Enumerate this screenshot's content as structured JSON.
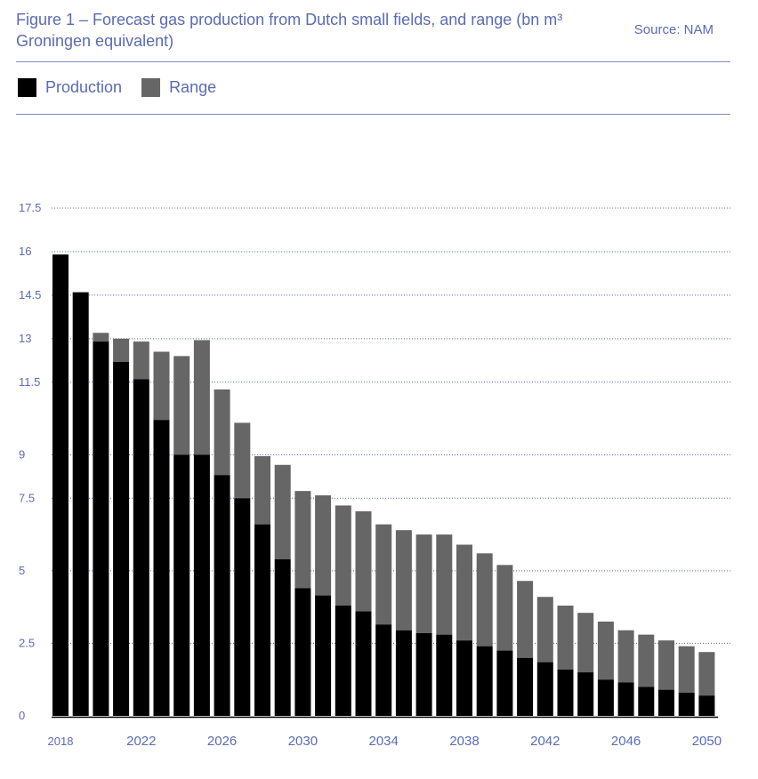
{
  "header": {
    "title": "Figure 1 – Forecast gas production from Dutch small fields, and range (bn m³ Groningen equivalent)",
    "source": "Source: NAM"
  },
  "legend": {
    "items": [
      {
        "label": "Production",
        "color": "#000000"
      },
      {
        "label": "Range",
        "color": "#666666"
      }
    ]
  },
  "chart_data": {
    "type": "bar",
    "stacked": true,
    "title": "Figure 1 – Forecast gas production from Dutch small fields, and range (bn m³ Groningen equivalent)",
    "xlabel": "",
    "ylabel": "",
    "ylim": [
      0,
      17.5
    ],
    "yticks": [
      "0",
      "2.5",
      "5",
      "7.5",
      "9",
      "11.5",
      "13",
      "14.5",
      "16",
      "17.5"
    ],
    "xtick_labels": [
      "2018",
      "2022",
      "2026",
      "2030",
      "2034",
      "2038",
      "2042",
      "2046",
      "2050"
    ],
    "grid": true,
    "legend_position": "top-left",
    "categories": [
      2018,
      2019,
      2020,
      2021,
      2022,
      2023,
      2024,
      2025,
      2026,
      2027,
      2028,
      2029,
      2030,
      2031,
      2032,
      2033,
      2034,
      2035,
      2036,
      2037,
      2038,
      2039,
      2040,
      2041,
      2042,
      2043,
      2044,
      2045,
      2046,
      2047,
      2048,
      2049,
      2050
    ],
    "series": [
      {
        "name": "Production",
        "color": "#000000",
        "values": [
          15.9,
          14.6,
          12.9,
          12.2,
          11.6,
          10.2,
          9.0,
          9.0,
          8.3,
          7.5,
          6.6,
          5.4,
          4.4,
          4.15,
          3.8,
          3.6,
          3.15,
          2.95,
          2.85,
          2.8,
          2.6,
          2.4,
          2.25,
          2.0,
          1.85,
          1.6,
          1.5,
          1.25,
          1.15,
          1.0,
          0.9,
          0.8,
          0.7
        ]
      },
      {
        "name": "Range",
        "color": "#666666",
        "values": [
          0.0,
          0.0,
          0.3,
          0.8,
          1.3,
          2.35,
          3.4,
          3.95,
          2.95,
          2.6,
          2.35,
          3.25,
          3.35,
          3.45,
          3.45,
          3.45,
          3.45,
          3.45,
          3.4,
          3.45,
          3.3,
          3.2,
          2.95,
          2.65,
          2.25,
          2.2,
          2.05,
          2.0,
          1.8,
          1.8,
          1.7,
          1.6,
          1.5
        ]
      }
    ]
  }
}
